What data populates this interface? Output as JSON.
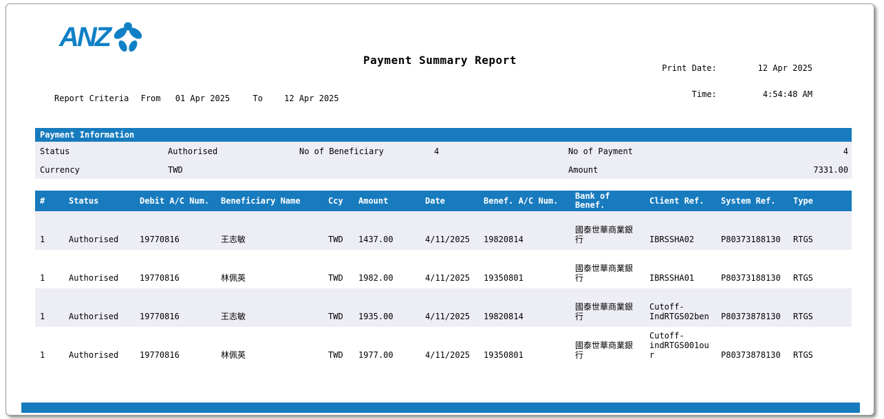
{
  "brand": {
    "logo_text": "ANZ"
  },
  "header": {
    "title": "Payment Summary Report",
    "print_date_label": "Print Date:",
    "print_date_value": "12 Apr 2025",
    "time_label": "Time:",
    "time_value": "4:54:48 AM",
    "criteria": {
      "label": "Report Criteria",
      "from_label": "From",
      "from_value": "01 Apr 2025",
      "to_label": "To",
      "to_value": "12 Apr 2025"
    }
  },
  "payment_information": {
    "section_title": "Payment Information",
    "status_label": "Status",
    "status_value": "Authorised",
    "no_of_beneficiary_label": "No of Beneficiary",
    "no_of_beneficiary_value": "4",
    "no_of_payment_label": "No of Payment",
    "no_of_payment_value": "4",
    "currency_label": "Currency",
    "currency_value": "TWD",
    "amount_label": "Amount",
    "amount_value": "7331.00"
  },
  "table": {
    "columns": [
      {
        "key": "num",
        "label": "#"
      },
      {
        "key": "status",
        "label": "Status"
      },
      {
        "key": "debit_ac",
        "label": "Debit A/C Num."
      },
      {
        "key": "beneficiary_name",
        "label": "Beneficiary Name"
      },
      {
        "key": "ccy",
        "label": "Ccy"
      },
      {
        "key": "amount",
        "label": "Amount"
      },
      {
        "key": "date",
        "label": "Date"
      },
      {
        "key": "benef_ac",
        "label": "Benef. A/C Num."
      },
      {
        "key": "bank_of_benef",
        "label": "Bank of Benef."
      },
      {
        "key": "client_ref",
        "label": "Client Ref."
      },
      {
        "key": "system_ref",
        "label": "System Ref."
      },
      {
        "key": "type",
        "label": "Type"
      }
    ],
    "rows": [
      {
        "num": "1",
        "status": "Authorised",
        "debit_ac": "19770816",
        "beneficiary_name": "王志敏",
        "ccy": "TWD",
        "amount": "1437.00",
        "date": "4/11/2025",
        "benef_ac": "19820814",
        "bank_of_benef": "國泰世華商業銀行",
        "client_ref": "IBRSSHA02",
        "system_ref": "P80373188130",
        "type": "RTGS"
      },
      {
        "num": "1",
        "status": "Authorised",
        "debit_ac": "19770816",
        "beneficiary_name": "林佩英",
        "ccy": "TWD",
        "amount": "1982.00",
        "date": "4/11/2025",
        "benef_ac": "19350801",
        "bank_of_benef": "國泰世華商業銀行",
        "client_ref": "IBRSSHA01",
        "system_ref": "P80373188130",
        "type": "RTGS"
      },
      {
        "num": "1",
        "status": "Authorised",
        "debit_ac": "19770816",
        "beneficiary_name": "王志敏",
        "ccy": "TWD",
        "amount": "1935.00",
        "date": "4/11/2025",
        "benef_ac": "19820814",
        "bank_of_benef": "國泰世華商業銀行",
        "client_ref": "Cutoff-IndRTGS02ben",
        "system_ref": "P80373878130",
        "type": "RTGS"
      },
      {
        "num": "1",
        "status": "Authorised",
        "debit_ac": "19770816",
        "beneficiary_name": "林佩英",
        "ccy": "TWD",
        "amount": "1977.00",
        "date": "4/11/2025",
        "benef_ac": "19350801",
        "bank_of_benef": "國泰世華商業銀行",
        "client_ref": "Cutoff-indRTGS001our",
        "system_ref": "P80373878130",
        "type": "RTGS"
      }
    ]
  },
  "colors": {
    "accent_blue": "#177BBE",
    "logo_blue": "#1080C6",
    "stripe_lavender": "#EDEDF5",
    "header_text": "#FFFFFF"
  }
}
